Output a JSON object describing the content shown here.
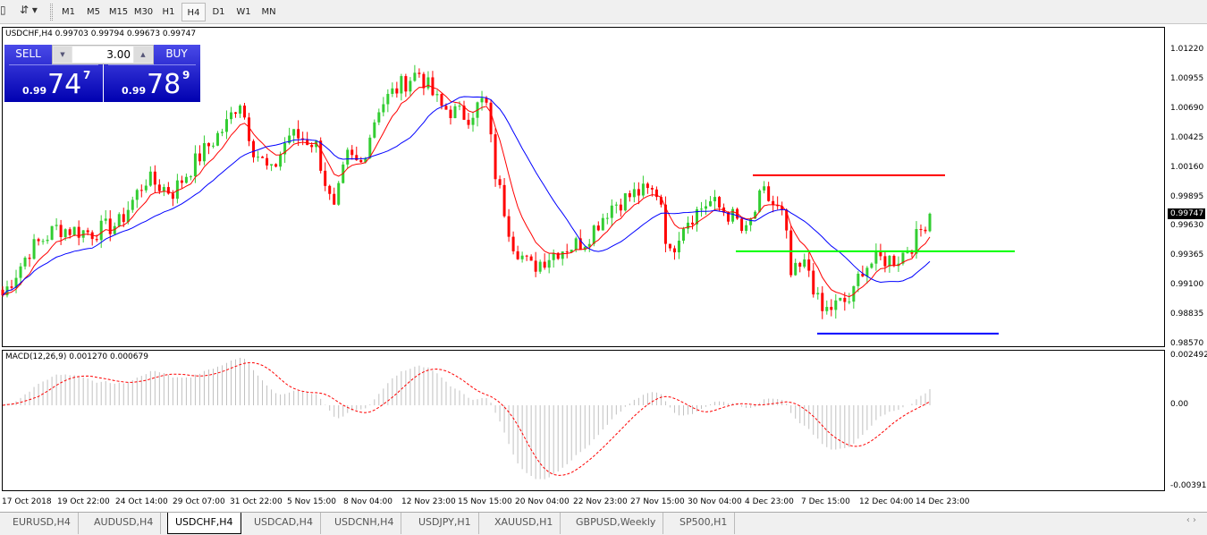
{
  "toolbar": {
    "timeframes": [
      "M1",
      "M5",
      "M15",
      "M30",
      "H1",
      "H4",
      "D1",
      "W1",
      "MN"
    ],
    "active": "H4"
  },
  "symbol_info": "USDCHF,H4  0.99703 0.99794 0.99673 0.99747",
  "trade_panel": {
    "sell_label": "SELL",
    "buy_label": "BUY",
    "lot": "3.00",
    "sell_prefix": "0.99",
    "sell_big": "74",
    "sell_sup": "7",
    "buy_prefix": "0.99",
    "buy_big": "78",
    "buy_sup": "9"
  },
  "price_axis": [
    "1.01220",
    "1.00955",
    "1.00690",
    "1.00425",
    "1.00160",
    "0.99895",
    "0.99630",
    "0.99365",
    "0.99100",
    "0.98835",
    "0.98570"
  ],
  "current_price": "0.99747",
  "macd": {
    "label": "MACD(12,26,9) 0.001270 0.000679",
    "axis": [
      "0.002492",
      "0.00",
      "-0.003913"
    ]
  },
  "time_axis": [
    "17 Oct 2018",
    "19 Oct 22:00",
    "24 Oct 14:00",
    "29 Oct 07:00",
    "31 Oct 22:00",
    "5 Nov 15:00",
    "8 Nov 04:00",
    "12 Nov 23:00",
    "15 Nov 15:00",
    "20 Nov 04:00",
    "22 Nov 23:00",
    "27 Nov 15:00",
    "30 Nov 04:00",
    "4 Dec 23:00",
    "7 Dec 15:00",
    "12 Dec 04:00",
    "14 Dec 23:00"
  ],
  "tabs": [
    "EURUSD,H4",
    "AUDUSD,H4",
    "USDCHF,H4",
    "USDCAD,H4",
    "USDCNH,H4",
    "USDJPY,H1",
    "XAUUSD,H1",
    "GBPUSD,Weekly",
    "SP500,H1"
  ],
  "active_tab": "USDCHF,H4",
  "chart_data": {
    "type": "candlestick",
    "symbol": "USDCHF",
    "timeframe": "H4",
    "ylim": [
      0.9857,
      1.0135
    ],
    "approx_close_path": [
      0.99014,
      0.99416,
      0.99618,
      0.99577,
      0.99658,
      1.0006,
      0.9994,
      1.00262,
      1.00544,
      1.00785,
      1.00343,
      1.00101,
      1.00463,
      1.00383,
      0.99739,
      1.00262,
      1.00181,
      1.00705,
      1.00866,
      1.01027,
      1.00705,
      1.00624,
      1.00785,
      1.00141,
      0.99497,
      0.99256,
      0.99416,
      0.99497,
      0.99819,
      0.9994,
      0.9994,
      0.99336,
      0.99658,
      0.9986,
      0.99699,
      0.99538,
      0.9994,
      0.99699,
      0.99175,
      0.99296,
      0.98853,
      0.98934,
      0.98974,
      0.99256,
      0.99336,
      0.99336,
      0.99497,
      0.99747
    ],
    "horizontal_lines": [
      {
        "price": 1.00093,
        "color": "#ff0000"
      },
      {
        "price": 0.99409,
        "color": "#00ff00"
      },
      {
        "price": 0.98668,
        "color": "#0000ff"
      }
    ],
    "colors": {
      "bull": "#32cd32",
      "bear": "#ff0000",
      "ma_fast": "#ff0000",
      "ma_slow": "#0000ff",
      "macd_hist": "#c0c0c0",
      "macd_signal": "#ff0000"
    }
  }
}
